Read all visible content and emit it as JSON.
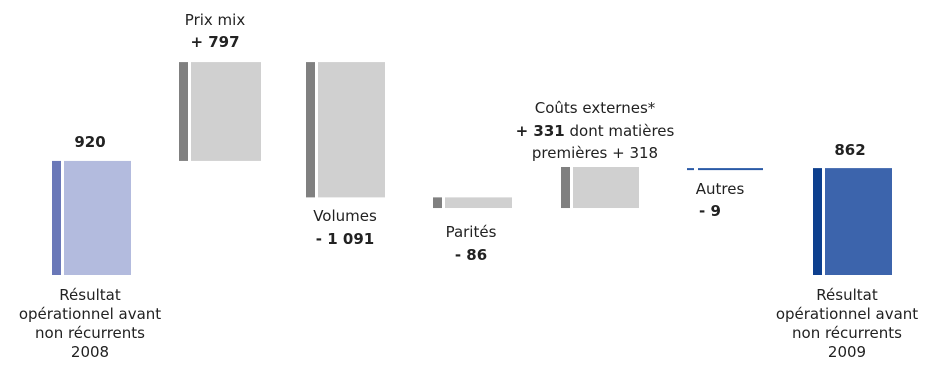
{
  "chart_data": {
    "type": "bar",
    "subtype": "waterfall",
    "colors": {
      "total_2008_front": "#b3bbde",
      "total_2008_side": "#6a78b8",
      "total_2009_front": "#3c64ac",
      "total_2009_side": "#0d3f8e",
      "step_front": "#d0d0d0",
      "step_side": "#808080",
      "autres": "#2a5aa6"
    },
    "bars": [
      {
        "key": "result2008",
        "kind": "total",
        "start": 0,
        "end": 920,
        "value_label": "920",
        "label_lines": [
          "Résultat",
          "opérationnel avant",
          "non récurrents",
          "2008"
        ]
      },
      {
        "key": "prix_mix",
        "kind": "step",
        "start": 920,
        "end": 1717,
        "name": "Prix mix",
        "value_label": "+ 797"
      },
      {
        "key": "volumes",
        "kind": "step",
        "start": 1717,
        "end": 626,
        "name": "Volumes",
        "value_label": "- 1 091"
      },
      {
        "key": "parites",
        "kind": "step",
        "start": 626,
        "end": 540,
        "name": "Parités",
        "value_label": "- 86"
      },
      {
        "key": "couts",
        "kind": "step",
        "start": 540,
        "end": 871,
        "name": "Coûts externes*",
        "value_label": "+ 331",
        "suffix": " dont matières",
        "extra_line": "premières + 318"
      },
      {
        "key": "autres",
        "kind": "step",
        "start": 871,
        "end": 862,
        "name": "Autres",
        "value_label": "- 9"
      },
      {
        "key": "result2009",
        "kind": "total",
        "start": 0,
        "end": 862,
        "value_label": "862",
        "label_lines": [
          "Résultat",
          "opérationnel avant",
          "non récurrents",
          "2009"
        ]
      }
    ]
  }
}
